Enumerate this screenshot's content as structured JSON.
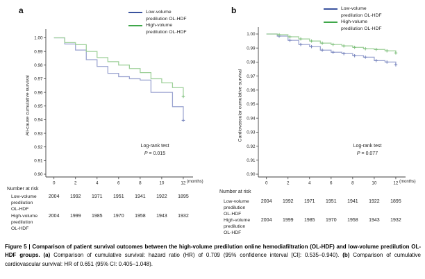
{
  "legend": {
    "series": [
      {
        "line1": "Low-volume",
        "line2": "predilution OL-HDF",
        "color": "#3A539E"
      },
      {
        "line1": "High-volume",
        "line2": "predilution OL-HDF",
        "color": "#3FA74A"
      }
    ]
  },
  "chart_data": [
    {
      "type": "line",
      "subtype": "kaplan_meier_step",
      "panel_label": "a",
      "ylabel": "All-cause cumulative survival",
      "x_unit_label": "(months)",
      "xlim": [
        0,
        12
      ],
      "ylim": [
        0.9,
        1.0
      ],
      "xticks": [
        0,
        2,
        4,
        6,
        8,
        10,
        12
      ],
      "ytick_labels": [
        "1.00",
        "0.99",
        "0.98",
        "0.97",
        "0.96",
        "0.95",
        "0.94",
        "0.93",
        "0.92",
        "0.91",
        "0.90"
      ],
      "months": [
        0,
        1,
        2,
        3,
        4,
        5,
        6,
        7,
        8,
        9,
        10,
        11,
        12
      ],
      "series": [
        {
          "name": "Low-volume predilution OL-HDF",
          "color": "#98A1CF",
          "censor_color": "#7280BB",
          "values": [
            1.0,
            0.9955,
            0.991,
            0.984,
            0.979,
            0.974,
            0.9715,
            0.97,
            0.969,
            0.96,
            0.96,
            0.9495,
            0.9395
          ],
          "censor_months": [
            12
          ]
        },
        {
          "name": "High-volume predilution OL-HDF",
          "color": "#9CCF97",
          "censor_color": "#79BD77",
          "values": [
            1.0,
            0.9965,
            0.995,
            0.99,
            0.9855,
            0.9825,
            0.98,
            0.9775,
            0.9745,
            0.97,
            0.967,
            0.9635,
            0.957
          ],
          "censor_months": [
            12
          ]
        }
      ],
      "annotation": {
        "line1": "Log-rank test",
        "p_label": "P",
        "p_value": " = 0.015"
      },
      "number_at_risk": {
        "header": "Number at risk",
        "rows": [
          {
            "label_lines": [
              "Low-volume",
              "predilution",
              "OL-HDF"
            ],
            "values": [
              "2004",
              "1992",
              "1971",
              "1951",
              "1941",
              "1922",
              "1895"
            ]
          },
          {
            "label_lines": [
              "High-volume",
              "predilution",
              "OL-HDF"
            ],
            "values": [
              "2004",
              "1999",
              "1985",
              "1970",
              "1958",
              "1943",
              "1932"
            ]
          }
        ]
      }
    },
    {
      "type": "line",
      "subtype": "kaplan_meier_step",
      "panel_label": "b",
      "ylabel": "Cardiovascular cumulative survival",
      "x_unit_label": "(months)",
      "xlim": [
        0,
        12
      ],
      "ylim": [
        0.9,
        1.0
      ],
      "xticks": [
        0,
        2,
        4,
        6,
        8,
        10,
        12
      ],
      "ytick_labels": [
        "1.00",
        "0.99",
        "0.98",
        "0.97",
        "0.96",
        "0.95",
        "0.94",
        "0.93",
        "0.92",
        "0.91",
        "0.90"
      ],
      "months": [
        0,
        1,
        2,
        3,
        4,
        5,
        6,
        7,
        8,
        9,
        10,
        11,
        12
      ],
      "series": [
        {
          "name": "Low-volume predilution OL-HDF",
          "color": "#98A1CF",
          "censor_color": "#7280BB",
          "values": [
            1.0,
            0.9985,
            0.9955,
            0.9925,
            0.991,
            0.9885,
            0.987,
            0.986,
            0.9845,
            0.9835,
            0.981,
            0.98,
            0.978
          ],
          "censor_months": [
            1,
            2,
            3,
            4,
            5,
            6,
            7,
            8,
            9,
            10,
            11,
            12
          ]
        },
        {
          "name": "High-volume predilution OL-HDF",
          "color": "#9CCF97",
          "censor_color": "#79BD77",
          "values": [
            1.0,
            0.9995,
            0.998,
            0.9965,
            0.995,
            0.9935,
            0.9925,
            0.9915,
            0.9905,
            0.9895,
            0.989,
            0.988,
            0.9865
          ],
          "censor_months": [
            1,
            2,
            3,
            4,
            5,
            6,
            7,
            8,
            9,
            10,
            11,
            12
          ]
        }
      ],
      "annotation": {
        "line1": "Log-rank test",
        "p_label": "P",
        "p_value": " = 0.077"
      },
      "number_at_risk": {
        "header": "Number at risk",
        "rows": [
          {
            "label_lines": [
              "Low-volume",
              "predilution",
              "OL-HDF"
            ],
            "values": [
              "2004",
              "1992",
              "1971",
              "1951",
              "1941",
              "1922",
              "1895"
            ]
          },
          {
            "label_lines": [
              "High-volume",
              "predilution",
              "OL-HDF"
            ],
            "values": [
              "2004",
              "1999",
              "1985",
              "1970",
              "1958",
              "1943",
              "1932"
            ]
          }
        ]
      }
    }
  ],
  "caption": {
    "label_bold": "Figure 5 | Comparison of patient survival outcomes between the high-volume predilution online hemodiafiltration (OL-HDF) and low-volume predilution OL-HDF groups.",
    "a_label": "(a)",
    "a_text": "Comparison of cumulative survival: hazard ratio (HR) of 0.709 (95% confidence interval [CI]: 0.535–0.940).",
    "b_label": "(b)",
    "b_text": "Comparison of cumulative cardiovascular survival: HR of 0.651 (95% CI: 0.405–1.048)."
  }
}
